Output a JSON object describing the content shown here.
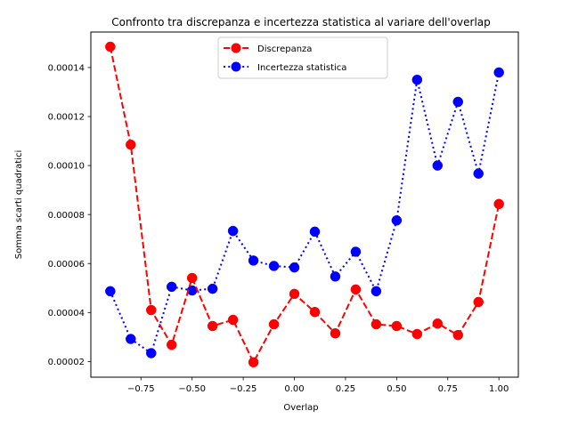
{
  "chart_data": {
    "type": "line",
    "title": "Confronto tra discrepanza e incertezza statistica al variare dell'overlap",
    "xlabel": "Overlap",
    "ylabel": "Somma scarti quadratici",
    "xlim": [
      -0.995,
      1.095
    ],
    "ylim": [
      1.36e-05,
      0.0001545
    ],
    "xticks": [
      -0.75,
      -0.5,
      -0.25,
      0.0,
      0.25,
      0.5,
      0.75,
      1.0
    ],
    "xtick_labels": [
      "−0.75",
      "−0.50",
      "−0.25",
      "0.00",
      "0.25",
      "0.50",
      "0.75",
      "1.00"
    ],
    "yticks": [
      2e-05,
      4e-05,
      6e-05,
      8e-05,
      0.0001,
      0.00012,
      0.00014
    ],
    "ytick_labels": [
      "0.00002",
      "0.00004",
      "0.00006",
      "0.00008",
      "0.00010",
      "0.00012",
      "0.00014"
    ],
    "grid": false,
    "legend_position": "top-center",
    "x": [
      -0.9,
      -0.8,
      -0.7,
      -0.6,
      -0.5,
      -0.4,
      -0.3,
      -0.2,
      -0.1,
      0.0,
      0.1,
      0.2,
      0.3,
      0.4,
      0.5,
      0.6,
      0.7,
      0.8,
      0.9,
      1.0
    ],
    "series": [
      {
        "name": "Discrepanza",
        "color": "#ff0000",
        "line_style": "dashed",
        "values": [
          0.0001485,
          0.0001085,
          4.1e-05,
          2.68e-05,
          5.41e-05,
          3.45e-05,
          3.7e-05,
          1.97e-05,
          3.52e-05,
          4.76e-05,
          4.02e-05,
          3.15e-05,
          4.94e-05,
          3.52e-05,
          3.45e-05,
          3.12e-05,
          3.55e-05,
          3.08e-05,
          4.43e-05,
          8.43e-05
        ]
      },
      {
        "name": "Incertezza statistica",
        "color": "#0000ff",
        "line_style": "dotted",
        "values": [
          4.87e-05,
          2.92e-05,
          2.34e-05,
          5.05e-05,
          4.9e-05,
          4.97e-05,
          7.33e-05,
          6.12e-05,
          5.9e-05,
          5.84e-05,
          7.3e-05,
          5.47e-05,
          6.48e-05,
          4.87e-05,
          7.76e-05,
          0.000135,
          0.0001,
          0.000126,
          9.67e-05,
          0.000138
        ]
      }
    ]
  }
}
